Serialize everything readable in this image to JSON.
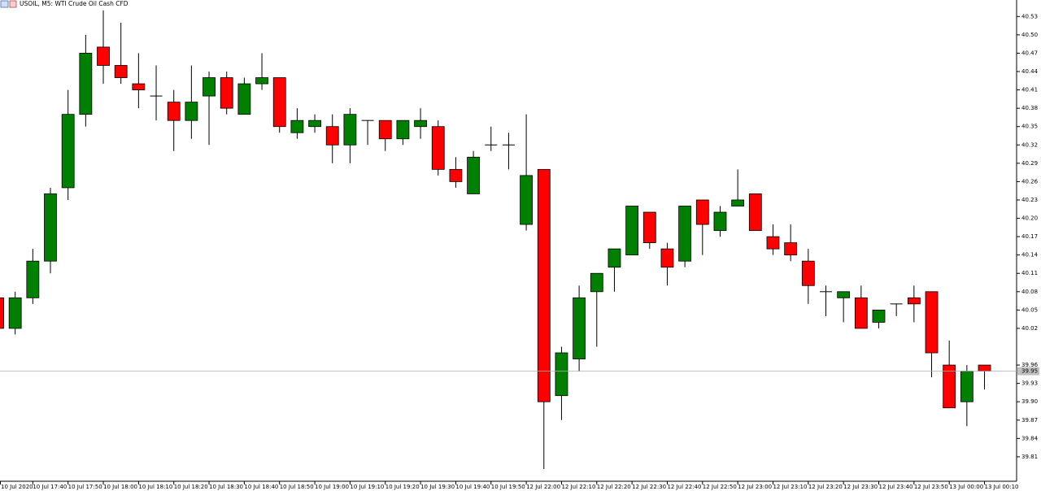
{
  "chart_data": {
    "type": "candlestick",
    "title": "USOIL, M5:  WTI Crude Oil Cash CFD",
    "categories": [
      "10 Jul 2020",
      null,
      "10 Jul 17:40",
      null,
      "10 Jul 17:50",
      null,
      "10 Jul 18:00",
      null,
      "10 Jul 18:10",
      null,
      "10 Jul 18:20",
      null,
      "10 Jul 18:30",
      null,
      "10 Jul 18:40",
      null,
      "10 Jul 18:50",
      null,
      "10 Jul 19:00",
      null,
      "10 Jul 19:10",
      null,
      "10 Jul 19:20",
      null,
      "10 Jul 19:30",
      null,
      "10 Jul 19:40",
      null,
      "10 Jul 19:50",
      null,
      "12 Jul 22:00",
      null,
      "12 Jul 22:10",
      null,
      "12 Jul 22:20",
      null,
      "12 Jul 22:30",
      null,
      "12 Jul 22:40",
      null,
      "12 Jul 22:50",
      null,
      "12 Jul 23:00",
      null,
      "12 Jul 23:10",
      null,
      "12 Jul 23:20",
      null,
      "12 Jul 23:30",
      null,
      "12 Jul 23:40",
      null,
      "12 Jul 23:50",
      null,
      "13 Jul 00:00",
      null,
      "13 Jul 00:10"
    ],
    "open": [
      40.07,
      40.02,
      40.07,
      40.13,
      40.25,
      40.37,
      40.48,
      40.45,
      40.42,
      40.4,
      40.39,
      40.36,
      40.4,
      40.43,
      40.37,
      40.42,
      40.43,
      40.34,
      40.35,
      40.35,
      40.32,
      40.36,
      40.36,
      40.33,
      40.35,
      40.35,
      40.28,
      40.24,
      40.32,
      40.32,
      40.19,
      40.28,
      39.91,
      39.97,
      40.08,
      40.12,
      40.14,
      40.21,
      40.15,
      40.13,
      40.23,
      40.18,
      40.22,
      40.24,
      40.17,
      40.16,
      40.13,
      40.08,
      40.07,
      40.07,
      40.03,
      40.06,
      40.07,
      40.08,
      39.96,
      39.9,
      39.96
    ],
    "high": [
      40.07,
      40.08,
      40.15,
      40.25,
      40.41,
      40.5,
      40.54,
      40.52,
      40.47,
      40.45,
      40.41,
      40.45,
      40.44,
      40.44,
      40.43,
      40.47,
      40.43,
      40.38,
      40.37,
      40.37,
      40.38,
      40.36,
      40.36,
      40.36,
      40.38,
      40.36,
      40.3,
      40.31,
      40.35,
      40.34,
      40.37,
      40.28,
      39.99,
      40.09,
      40.11,
      40.15,
      40.22,
      40.21,
      40.16,
      40.22,
      40.23,
      40.22,
      40.28,
      40.24,
      40.19,
      40.19,
      40.15,
      40.09,
      40.08,
      40.09,
      40.05,
      40.06,
      40.09,
      40.08,
      40.0,
      39.96,
      39.96
    ],
    "low": [
      40.02,
      40.01,
      40.06,
      40.11,
      40.23,
      40.35,
      40.42,
      40.42,
      40.38,
      40.36,
      40.31,
      40.33,
      40.32,
      40.37,
      40.37,
      40.41,
      40.34,
      40.33,
      40.34,
      40.29,
      40.29,
      40.32,
      40.31,
      40.32,
      40.33,
      40.27,
      40.25,
      40.24,
      40.31,
      40.28,
      40.18,
      39.79,
      39.87,
      39.95,
      39.99,
      40.08,
      40.14,
      40.15,
      40.09,
      40.12,
      40.14,
      40.17,
      40.22,
      40.18,
      40.14,
      40.13,
      40.06,
      40.04,
      40.03,
      40.02,
      40.02,
      40.04,
      40.03,
      39.94,
      39.89,
      39.86,
      39.92
    ],
    "close": [
      40.02,
      40.07,
      40.13,
      40.24,
      40.37,
      40.47,
      40.45,
      40.43,
      40.41,
      40.4,
      40.36,
      40.39,
      40.43,
      40.38,
      40.42,
      40.43,
      40.35,
      40.36,
      40.36,
      40.32,
      40.37,
      40.36,
      40.33,
      40.36,
      40.36,
      40.28,
      40.26,
      40.3,
      40.32,
      40.32,
      40.27,
      39.9,
      39.98,
      40.07,
      40.11,
      40.15,
      40.22,
      40.16,
      40.12,
      40.22,
      40.19,
      40.21,
      40.23,
      40.18,
      40.15,
      40.14,
      40.09,
      40.08,
      40.08,
      40.02,
      40.05,
      40.06,
      40.06,
      39.98,
      39.89,
      39.95,
      39.95
    ],
    "up_color": "#008000",
    "down_color": "#ff0000",
    "current_price": 39.95,
    "ylim": [
      39.77,
      40.557
    ],
    "yticks": [
      40.53,
      {
        "value": 40.5,
        "label": "40.50"
      },
      40.47,
      40.44,
      40.41,
      40.38,
      40.35,
      40.32,
      40.29,
      40.26,
      40.23,
      {
        "value": 40.2,
        "label": "40.20"
      },
      40.17,
      40.14,
      40.11,
      40.08,
      40.05,
      40.02,
      39.96,
      39.93,
      {
        "value": 39.9,
        "label": "39.90"
      },
      39.87,
      39.84,
      39.81
    ]
  }
}
